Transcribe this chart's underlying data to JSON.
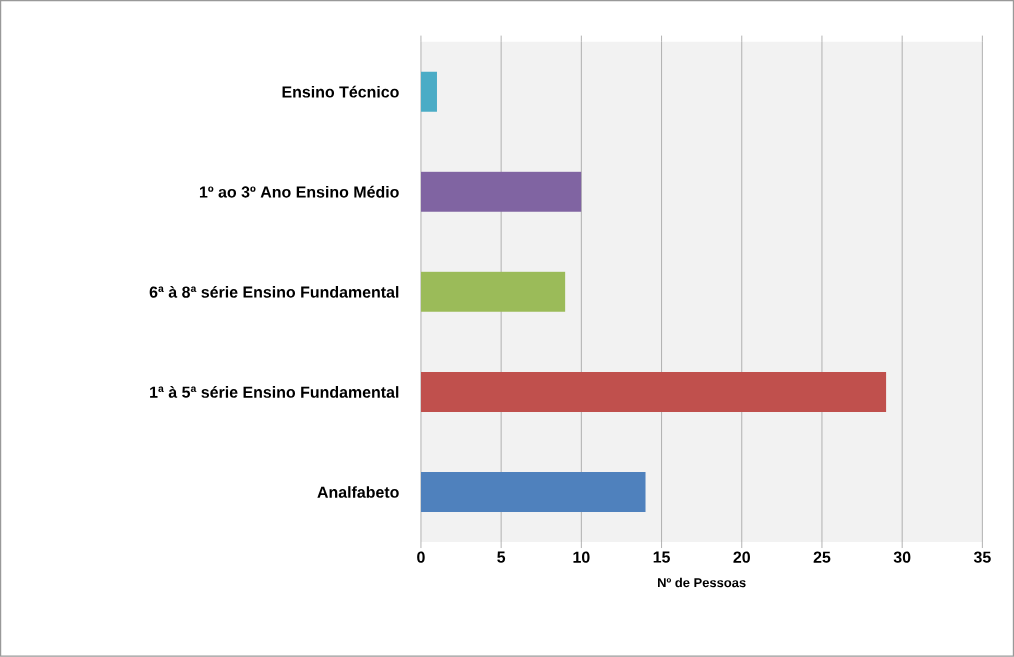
{
  "chart_data": {
    "type": "bar",
    "orientation": "horizontal",
    "categories": [
      "Ensino Técnico",
      "1º ao 3º Ano Ensino Médio",
      "6ª à 8ª série Ensino Fundamental",
      "1ª à 5ª série Ensino Fundamental",
      "Analfabeto"
    ],
    "values": [
      1,
      10,
      9,
      29,
      14
    ],
    "colors": [
      "#4bacc6",
      "#8064a2",
      "#9bbb59",
      "#c0504d",
      "#4f81bd"
    ],
    "xlim": [
      0,
      35
    ],
    "xticks": [
      0,
      5,
      10,
      15,
      20,
      25,
      30,
      35
    ],
    "xlabel": "Nº de Pessoas",
    "grid": "x"
  }
}
